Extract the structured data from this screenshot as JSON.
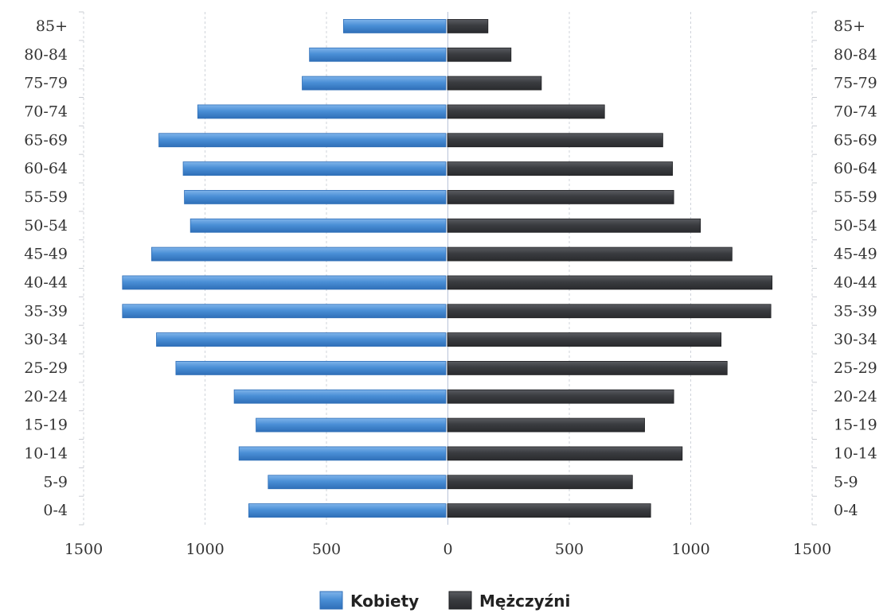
{
  "chart_data": {
    "type": "bar",
    "orientation": "horizontal",
    "subtype": "population-pyramid",
    "categories": [
      "85+",
      "80-84",
      "75-79",
      "70-74",
      "65-69",
      "60-64",
      "55-59",
      "50-54",
      "45-49",
      "40-44",
      "35-39",
      "30-34",
      "25-29",
      "20-24",
      "15-19",
      "10-14",
      "5-9",
      "0-4"
    ],
    "series": [
      {
        "name": "Kobiety",
        "side": "left",
        "color": "#4a8fd6",
        "values": [
          430,
          570,
          600,
          1030,
          1190,
          1090,
          1085,
          1060,
          1220,
          1340,
          1340,
          1200,
          1120,
          880,
          790,
          860,
          740,
          820
        ]
      },
      {
        "name": "Mężczyźni",
        "side": "right",
        "color": "#3a3c40",
        "values": [
          165,
          260,
          385,
          645,
          885,
          925,
          930,
          1040,
          1170,
          1335,
          1330,
          1125,
          1150,
          930,
          810,
          965,
          760,
          835
        ]
      }
    ],
    "xlim": [
      -1500,
      1500
    ],
    "x_ticks": [
      "1500",
      "1000",
      "500",
      "0",
      "500",
      "1000",
      "1500"
    ],
    "x_tick_values": [
      -1500,
      -1000,
      -500,
      0,
      500,
      1000,
      1500
    ],
    "grid": true,
    "legend_position": "bottom-center",
    "category_labels_both_sides": true
  }
}
